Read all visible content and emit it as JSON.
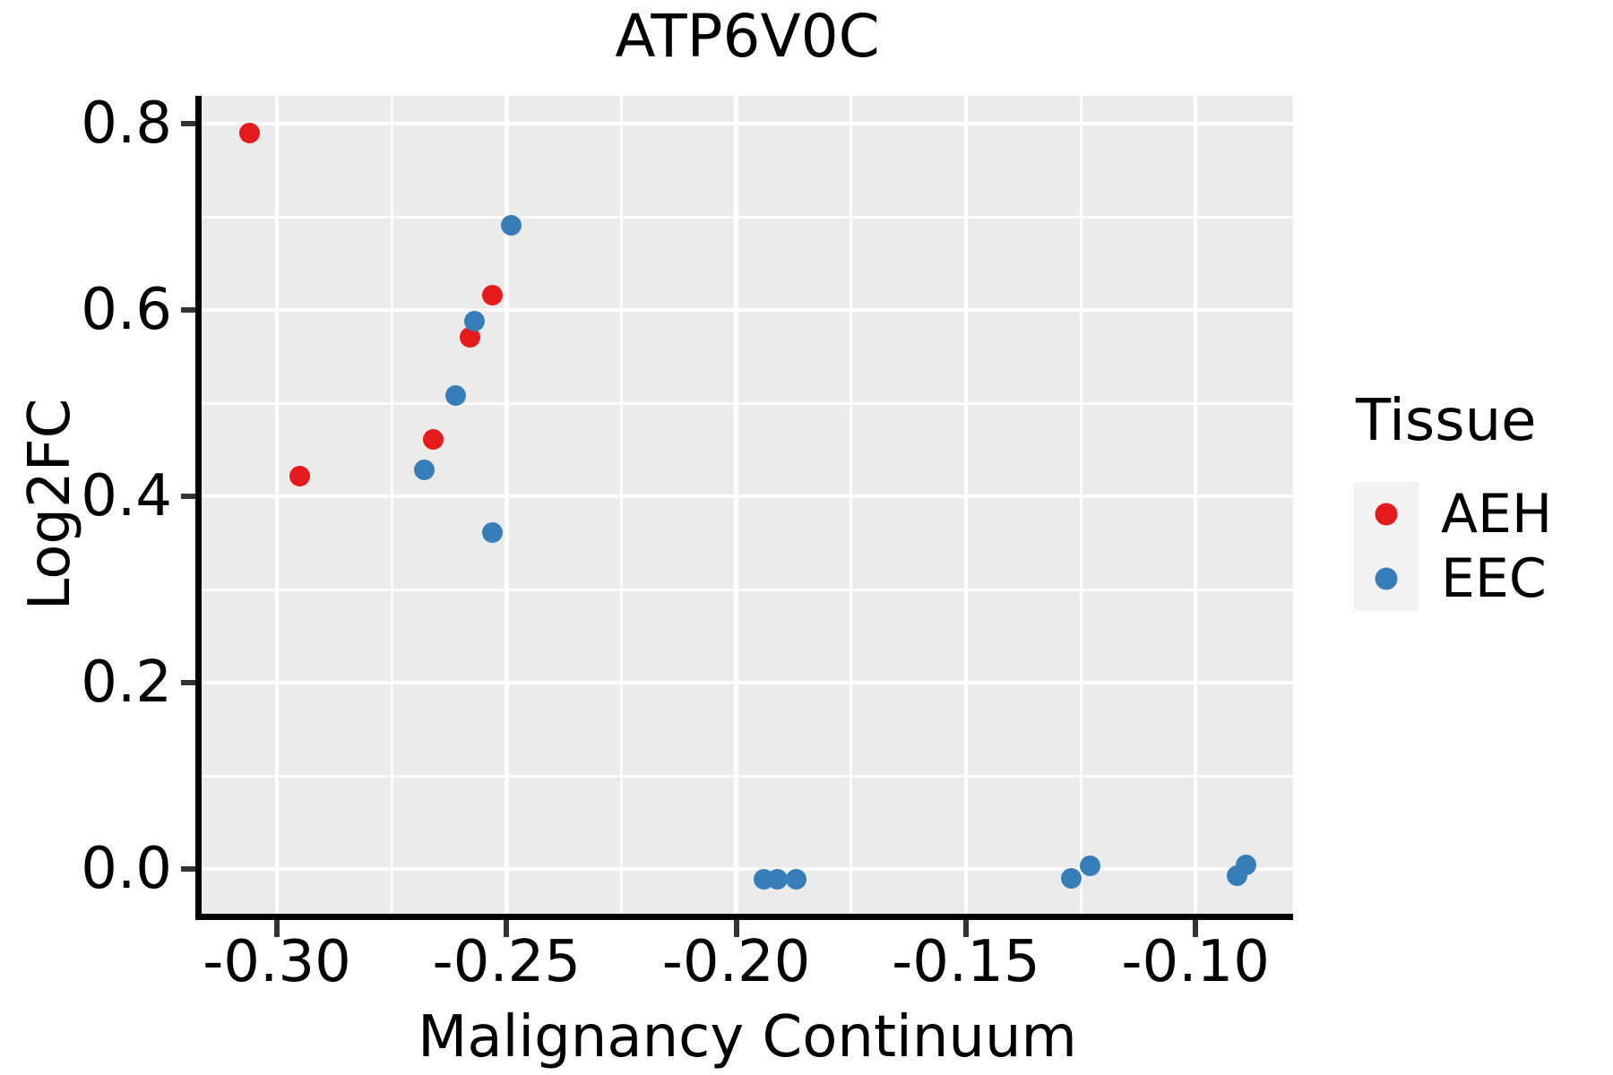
{
  "title": "ATP6V0C",
  "legend": {
    "title": "Tissue",
    "items": [
      {
        "label": "AEH",
        "color": "#e41a1c"
      },
      {
        "label": "EEC",
        "color": "#377eb8"
      }
    ]
  },
  "chart_data": {
    "type": "scatter",
    "title": "ATP6V0C",
    "xlabel": "Malignancy Continuum",
    "ylabel": "Log2FC",
    "xlim": [
      -0.316,
      -0.079
    ],
    "ylim": [
      -0.05,
      0.83
    ],
    "x_ticks": [
      -0.3,
      -0.25,
      -0.2,
      -0.15,
      -0.1
    ],
    "x_tick_labels": [
      "-0.30",
      "-0.25",
      "-0.20",
      "-0.15",
      "-0.10"
    ],
    "y_ticks": [
      0.8,
      0.6,
      0.4,
      0.2,
      0.0
    ],
    "y_tick_labels": [
      "0.8",
      "0.6",
      "0.4",
      "0.2",
      "0.0"
    ],
    "grid": "white major and minor gridlines on gray panel",
    "legend_position": "right",
    "panel_background": "#ebebeb",
    "series": [
      {
        "name": "AEH",
        "color": "#e41a1c",
        "points": [
          [
            -0.306,
            0.79
          ],
          [
            -0.295,
            0.422
          ],
          [
            -0.266,
            0.461
          ],
          [
            -0.258,
            0.571
          ],
          [
            -0.253,
            0.616
          ]
        ]
      },
      {
        "name": "EEC",
        "color": "#377eb8",
        "points": [
          [
            -0.249,
            0.691
          ],
          [
            -0.257,
            0.588
          ],
          [
            -0.261,
            0.508
          ],
          [
            -0.268,
            0.428
          ],
          [
            -0.253,
            0.361
          ],
          [
            -0.194,
            -0.011
          ],
          [
            -0.191,
            -0.011
          ],
          [
            -0.187,
            -0.011
          ],
          [
            -0.127,
            -0.01
          ],
          [
            -0.123,
            0.003
          ],
          [
            -0.091,
            -0.007
          ],
          [
            -0.089,
            0.004
          ]
        ]
      }
    ]
  }
}
